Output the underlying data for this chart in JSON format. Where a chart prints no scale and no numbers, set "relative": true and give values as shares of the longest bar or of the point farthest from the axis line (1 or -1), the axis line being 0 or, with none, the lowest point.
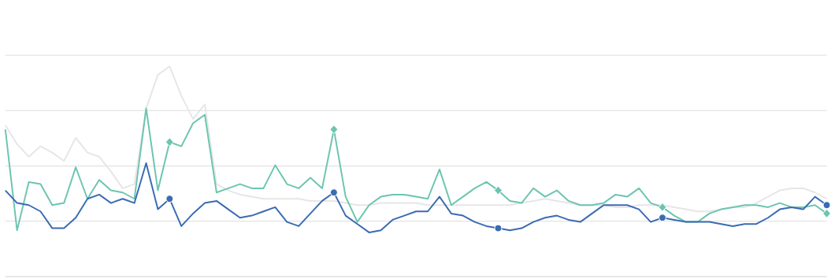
{
  "chart_data": {
    "type": "line",
    "relative": true,
    "grid": "y",
    "line_style": "solid",
    "categories": [
      null,
      null,
      null,
      null,
      null,
      null,
      null,
      null,
      null,
      null,
      null,
      null,
      null,
      null,
      null,
      null,
      null,
      null,
      null,
      null,
      null,
      null,
      null,
      null,
      null,
      null,
      null,
      null,
      null,
      null,
      null,
      null,
      null,
      null,
      null,
      null,
      null,
      null,
      null,
      null,
      null,
      null,
      null,
      null,
      null,
      null,
      null,
      null,
      null,
      null,
      null,
      null,
      null,
      null,
      null,
      null,
      null,
      null,
      null,
      null,
      null,
      null,
      null,
      null,
      null,
      null,
      null,
      null,
      null,
      null,
      null
    ],
    "series": [
      {
        "color": "#e6e6e6",
        "values": [
          0.72,
          0.63,
          0.57,
          0.62,
          0.59,
          0.55,
          0.66,
          0.59,
          0.57,
          0.5,
          0.42,
          0.44,
          0.8,
          0.96,
          1.0,
          0.86,
          0.75,
          0.82,
          0.44,
          0.41,
          0.39,
          0.38,
          0.37,
          0.37,
          0.37,
          0.37,
          0.36,
          0.36,
          0.36,
          0.35,
          0.34,
          0.34,
          0.35,
          0.35,
          0.35,
          0.35,
          0.34,
          0.34,
          0.34,
          0.34,
          0.34,
          0.34,
          0.34,
          0.34,
          0.35,
          0.36,
          0.37,
          0.36,
          0.35,
          0.34,
          0.34,
          0.34,
          0.33,
          0.33,
          0.34,
          0.34,
          0.34,
          0.33,
          0.32,
          0.31,
          0.31,
          0.32,
          0.33,
          0.33,
          0.35,
          0.38,
          0.41,
          0.42,
          0.42,
          0.4,
          0.37
        ]
      },
      {
        "color": "#6cc5b0",
        "values": [
          0.7,
          0.22,
          0.45,
          0.44,
          0.34,
          0.35,
          0.52,
          0.37,
          0.46,
          0.41,
          0.4,
          0.37,
          0.8,
          0.41,
          0.64,
          0.62,
          0.73,
          0.77,
          0.4,
          0.42,
          0.44,
          0.42,
          0.42,
          0.53,
          0.44,
          0.42,
          0.47,
          0.42,
          0.7,
          0.38,
          0.26,
          0.34,
          0.38,
          0.39,
          0.39,
          0.38,
          0.37,
          0.51,
          0.34,
          0.38,
          0.42,
          0.45,
          0.41,
          0.36,
          0.35,
          0.42,
          0.38,
          0.41,
          0.36,
          0.34,
          0.34,
          0.35,
          0.39,
          0.38,
          0.42,
          0.35,
          0.33,
          0.29,
          0.26,
          0.26,
          0.3,
          0.32,
          0.33,
          0.34,
          0.34,
          0.33,
          0.35,
          0.33,
          0.33,
          0.34,
          0.3
        ]
      },
      {
        "color": "#3a6bb3",
        "values": [
          0.41,
          0.35,
          0.34,
          0.31,
          0.23,
          0.23,
          0.28,
          0.37,
          0.39,
          0.35,
          0.37,
          0.35,
          0.54,
          0.32,
          0.37,
          0.24,
          0.3,
          0.35,
          0.36,
          0.32,
          0.28,
          0.29,
          0.31,
          0.33,
          0.26,
          0.24,
          0.3,
          0.36,
          0.4,
          0.29,
          0.25,
          0.21,
          0.22,
          0.27,
          0.29,
          0.31,
          0.31,
          0.38,
          0.3,
          0.29,
          0.26,
          0.24,
          0.23,
          0.22,
          0.23,
          0.26,
          0.28,
          0.29,
          0.27,
          0.26,
          0.3,
          0.34,
          0.34,
          0.34,
          0.32,
          0.26,
          0.28,
          0.27,
          0.26,
          0.26,
          0.26,
          0.25,
          0.24,
          0.25,
          0.25,
          0.28,
          0.32,
          0.33,
          0.32,
          0.38,
          0.34
        ]
      }
    ]
  }
}
